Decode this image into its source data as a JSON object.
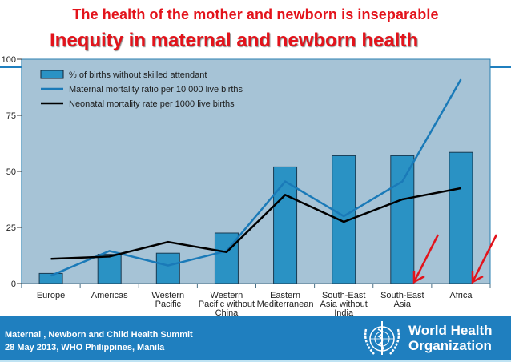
{
  "slide": {
    "subtitle": "The health of the mother and newborn is inseparable",
    "title": "Inequity in maternal and newborn health"
  },
  "footer": {
    "line1": "Maternal , Newborn and Child Health Summit",
    "line2": "28 May 2013, WHO Philippines, Manila",
    "org_line1": "World Health",
    "org_line2": "Organization",
    "logo": "who-emblem-icon"
  },
  "colors": {
    "title_red": "#e3131b",
    "plot_bg": "#a6c3d6",
    "bar_fill": "#2a92c4",
    "maternal_line": "#1a7ab8",
    "neonatal_line": "#000000",
    "footer_blue": "#1f7fbf",
    "arrow_red": "#e3131b"
  },
  "chart_data": {
    "type": "bar",
    "title": "",
    "xlabel": "",
    "ylabel": "",
    "ylim": [
      0,
      100
    ],
    "yticks": [
      0,
      25,
      50,
      75,
      100
    ],
    "grid": false,
    "legend_position": "top-left inside",
    "categories": [
      "Europe",
      "Americas",
      "Western Pacific",
      "Western Pacific without China",
      "Eastern Mediterranean",
      "South-East Asia without India",
      "South-East Asia",
      "Africa"
    ],
    "category_lines": [
      [
        "Europe"
      ],
      [
        "Americas"
      ],
      [
        "Western",
        "Pacific"
      ],
      [
        "Western",
        "Pacific without",
        "China"
      ],
      [
        "Eastern",
        "Mediterranean"
      ],
      [
        "South-East",
        "Asia without",
        "India"
      ],
      [
        "South-East",
        "Asia"
      ],
      [
        "Africa"
      ]
    ],
    "series": [
      {
        "name": "% of births without skilled attendant",
        "type": "bar",
        "values": [
          4.5,
          13,
          13.5,
          22.5,
          52,
          57,
          57,
          58.5
        ]
      },
      {
        "name": "Maternal mortality ratio per 10 000 live births",
        "type": "line",
        "values": [
          3.5,
          14.5,
          8,
          14.5,
          45.5,
          30,
          45.5,
          91
        ]
      },
      {
        "name": "Neonatal mortality rate per 1000 live births",
        "type": "line",
        "values": [
          11,
          12,
          18.5,
          14,
          39.5,
          27.5,
          37.5,
          42.5
        ]
      }
    ],
    "annotations": [
      {
        "type": "red-arrow",
        "points_to": "South-East Asia"
      },
      {
        "type": "red-arrow",
        "points_to": "Africa"
      }
    ]
  }
}
